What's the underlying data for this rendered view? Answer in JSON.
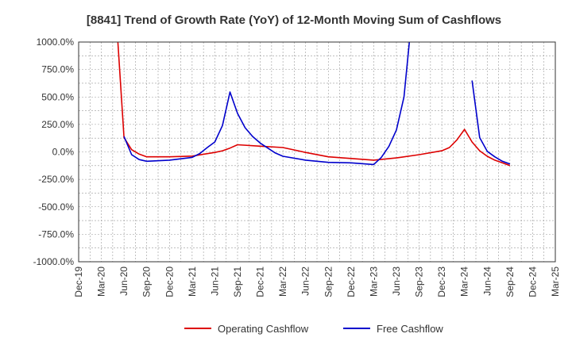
{
  "chart_data": {
    "type": "line",
    "title": "[8841]  Trend of Growth Rate (YoY) of 12-Month Moving Sum of Cashflows",
    "xlabel": "",
    "ylabel": "",
    "ylim": [
      -1000,
      1000
    ],
    "yticks": [
      {
        "v": 1000,
        "label": "1000.0%"
      },
      {
        "v": 750,
        "label": "750.0%"
      },
      {
        "v": 500,
        "label": "500.0%"
      },
      {
        "v": 250,
        "label": "250.0%"
      },
      {
        "v": 0,
        "label": "0.0%"
      },
      {
        "v": -250,
        "label": "-250.0%"
      },
      {
        "v": -500,
        "label": "-500.0%"
      },
      {
        "v": -750,
        "label": "-750.0%"
      },
      {
        "v": -1000,
        "label": "-1000.0%"
      }
    ],
    "xticks": [
      "Dec-19",
      "Mar-20",
      "Jun-20",
      "Sep-20",
      "Dec-20",
      "Mar-21",
      "Jun-21",
      "Sep-21",
      "Dec-21",
      "Mar-22",
      "Jun-22",
      "Sep-22",
      "Dec-22",
      "Mar-23",
      "Jun-23",
      "Sep-23",
      "Dec-23",
      "Mar-24",
      "Jun-24",
      "Sep-24",
      "Dec-24",
      "Mar-25"
    ],
    "grid": true,
    "legend_position": "bottom",
    "series": [
      {
        "name": "Operating Cashflow",
        "color": "#dd0000",
        "points": [
          [
            "May-20",
            1200
          ],
          [
            "Jun-20",
            130
          ],
          [
            "Jul-20",
            20
          ],
          [
            "Aug-20",
            -20
          ],
          [
            "Sep-20",
            -45
          ],
          [
            "Dec-20",
            -45
          ],
          [
            "Mar-21",
            -38
          ],
          [
            "Jun-21",
            -5
          ],
          [
            "Jul-21",
            10
          ],
          [
            "Aug-21",
            35
          ],
          [
            "Sep-21",
            65
          ],
          [
            "Dec-21",
            52
          ],
          [
            "Mar-22",
            40
          ],
          [
            "Jun-22",
            -5
          ],
          [
            "Sep-22",
            -45
          ],
          [
            "Dec-22",
            -60
          ],
          [
            "Mar-23",
            -75
          ],
          [
            "Jun-23",
            -55
          ],
          [
            "Sep-23",
            -25
          ],
          [
            "Dec-23",
            10
          ],
          [
            "Jan-24",
            40
          ],
          [
            "Feb-24",
            110
          ],
          [
            "Mar-24",
            205
          ],
          [
            "Apr-24",
            90
          ],
          [
            "May-24",
            10
          ],
          [
            "Jun-24",
            -40
          ],
          [
            "Jul-24",
            -75
          ],
          [
            "Aug-24",
            -100
          ],
          [
            "Sep-24",
            -125
          ]
        ]
      },
      {
        "name": "Free Cashflow",
        "color": "#0000cc",
        "segments": [
          [
            [
              "Jun-20",
              140
            ],
            [
              "Jul-20",
              -25
            ],
            [
              "Aug-20",
              -70
            ],
            [
              "Sep-20",
              -85
            ],
            [
              "Dec-20",
              -75
            ],
            [
              "Mar-21",
              -50
            ],
            [
              "Apr-21",
              -15
            ],
            [
              "May-21",
              40
            ],
            [
              "Jun-21",
              90
            ],
            [
              "Jul-21",
              240
            ],
            [
              "Aug-21",
              545
            ],
            [
              "Sep-21",
              350
            ],
            [
              "Oct-21",
              220
            ],
            [
              "Nov-21",
              140
            ],
            [
              "Dec-21",
              80
            ],
            [
              "Jan-22",
              35
            ],
            [
              "Feb-22",
              -10
            ],
            [
              "Mar-22",
              -40
            ],
            [
              "Jun-22",
              -75
            ],
            [
              "Sep-22",
              -95
            ],
            [
              "Dec-22",
              -100
            ],
            [
              "Mar-23",
              -115
            ],
            [
              "Apr-23",
              -50
            ],
            [
              "May-23",
              50
            ],
            [
              "Jun-23",
              200
            ],
            [
              "Jul-23",
              500
            ],
            [
              "Aug-23",
              1200
            ]
          ],
          [
            [
              "Apr-24",
              650
            ],
            [
              "May-24",
              130
            ],
            [
              "Jun-24",
              5
            ],
            [
              "Jul-24",
              -45
            ],
            [
              "Aug-24",
              -85
            ],
            [
              "Sep-24",
              -110
            ]
          ]
        ]
      }
    ]
  }
}
